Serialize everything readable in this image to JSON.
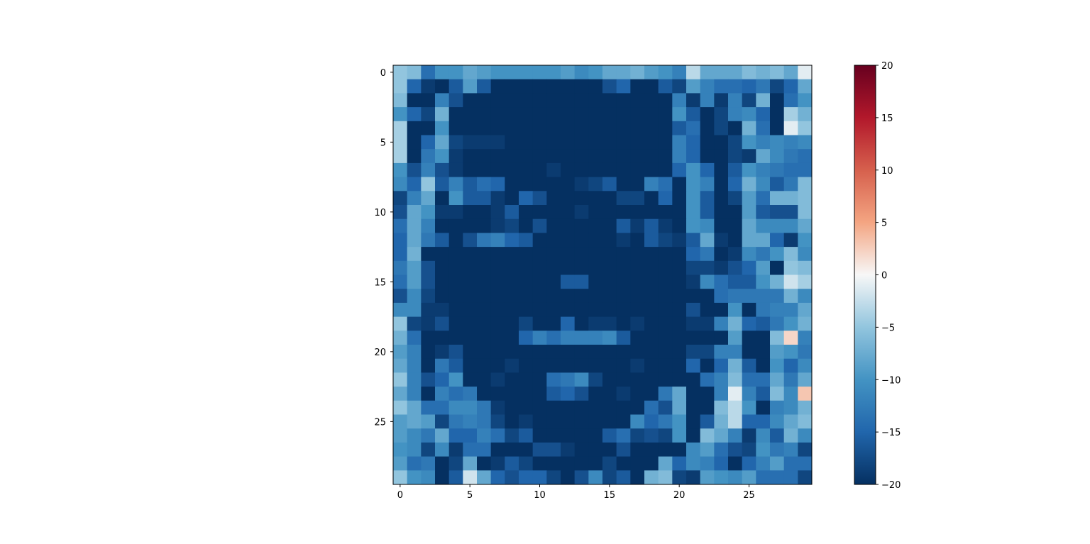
{
  "chart_data": {
    "type": "heatmap",
    "title": "",
    "xlabel": "",
    "ylabel": "",
    "rows": 30,
    "cols": 30,
    "x_ticks": [
      0,
      5,
      10,
      15,
      20,
      25
    ],
    "x_tick_labels": [
      "0",
      "5",
      "10",
      "15",
      "20",
      "25"
    ],
    "y_ticks": [
      0,
      5,
      10,
      15,
      20,
      25
    ],
    "y_tick_labels": [
      "0",
      "5",
      "10",
      "15",
      "20",
      "25"
    ],
    "colormap": "RdBu_r",
    "vmin": -20,
    "vmax": 20,
    "colorbar_ticks": [
      -20,
      -15,
      -10,
      -5,
      0,
      5,
      10,
      15,
      20
    ],
    "colorbar_tick_labels": [
      "−20",
      "−15",
      "−10",
      "−5",
      "0",
      "5",
      "10",
      "15",
      "20"
    ],
    "grid": false,
    "values": [
      [
        -5,
        -6,
        -14,
        -10,
        -10,
        -8,
        -9,
        -10,
        -10,
        -10,
        -10,
        -10,
        -9,
        -11,
        -10,
        -8,
        -8,
        -7,
        -9,
        -10,
        -12,
        -3,
        -8,
        -8,
        -8,
        -6,
        -7,
        -6,
        -8,
        -1
      ],
      [
        -5,
        -15,
        -19,
        -20,
        -16,
        -9,
        -16,
        -20,
        -20,
        -20,
        -20,
        -20,
        -20,
        -20,
        -20,
        -17,
        -15,
        -20,
        -20,
        -16,
        -18,
        -9,
        -12,
        -14,
        -14,
        -15,
        -13,
        -18,
        -15,
        -8
      ],
      [
        -6,
        -20,
        -20,
        -12,
        -17,
        -20,
        -20,
        -20,
        -20,
        -20,
        -20,
        -20,
        -20,
        -20,
        -20,
        -20,
        -20,
        -20,
        -20,
        -20,
        -12,
        -19,
        -12,
        -19,
        -12,
        -18,
        -7,
        -20,
        -14,
        -10
      ],
      [
        -10,
        -15,
        -18,
        -7,
        -20,
        -20,
        -20,
        -20,
        -20,
        -20,
        -20,
        -20,
        -20,
        -20,
        -20,
        -20,
        -20,
        -20,
        -20,
        -20,
        -10,
        -16,
        -20,
        -18,
        -12,
        -11,
        -15,
        -20,
        -4,
        -7
      ],
      [
        -4,
        -20,
        -20,
        -10,
        -20,
        -20,
        -20,
        -20,
        -20,
        -20,
        -20,
        -20,
        -20,
        -20,
        -20,
        -20,
        -20,
        -20,
        -20,
        -20,
        -16,
        -14,
        -20,
        -18,
        -20,
        -7,
        -14,
        -20,
        -1,
        -5
      ],
      [
        -4,
        -20,
        -15,
        -8,
        -18,
        -19,
        -19,
        -19,
        -20,
        -20,
        -20,
        -20,
        -20,
        -20,
        -20,
        -20,
        -20,
        -20,
        -20,
        -20,
        -12,
        -15,
        -20,
        -20,
        -18,
        -10,
        -12,
        -11,
        -12,
        -11
      ],
      [
        -4,
        -20,
        -13,
        -10,
        -19,
        -20,
        -20,
        -20,
        -20,
        -20,
        -20,
        -20,
        -20,
        -20,
        -20,
        -20,
        -20,
        -20,
        -20,
        -20,
        -12,
        -15,
        -20,
        -20,
        -18,
        -19,
        -8,
        -11,
        -13,
        -14
      ],
      [
        -10,
        -17,
        -12,
        -17,
        -19,
        -20,
        -20,
        -20,
        -20,
        -20,
        -20,
        -19,
        -20,
        -20,
        -20,
        -20,
        -20,
        -20,
        -20,
        -20,
        -15,
        -10,
        -15,
        -20,
        -16,
        -10,
        -12,
        -13,
        -14,
        -14
      ],
      [
        -11,
        -15,
        -5,
        -16,
        -12,
        -16,
        -14,
        -15,
        -20,
        -20,
        -20,
        -20,
        -20,
        -19,
        -18,
        -16,
        -20,
        -20,
        -12,
        -14,
        -20,
        -10,
        -12,
        -20,
        -15,
        -7,
        -11,
        -16,
        -13,
        -6
      ],
      [
        -18,
        -12,
        -8,
        -20,
        -10,
        -16,
        -16,
        -19,
        -20,
        -15,
        -17,
        -20,
        -20,
        -20,
        -20,
        -20,
        -18,
        -18,
        -20,
        -15,
        -20,
        -10,
        -16,
        -20,
        -18,
        -9,
        -14,
        -7,
        -7,
        -6
      ],
      [
        -17,
        -8,
        -10,
        -19,
        -19,
        -20,
        -20,
        -19,
        -16,
        -20,
        -20,
        -20,
        -20,
        -19,
        -20,
        -20,
        -20,
        -20,
        -20,
        -20,
        -20,
        -10,
        -16,
        -20,
        -20,
        -9,
        -16,
        -17,
        -17,
        -6
      ],
      [
        -14,
        -8,
        -12,
        -20,
        -20,
        -20,
        -20,
        -19,
        -18,
        -20,
        -17,
        -20,
        -20,
        -20,
        -20,
        -20,
        -16,
        -19,
        -16,
        -19,
        -20,
        -10,
        -11,
        -20,
        -20,
        -8,
        -11,
        -11,
        -11,
        -8
      ],
      [
        -15,
        -8,
        -13,
        -16,
        -20,
        -17,
        -13,
        -12,
        -15,
        -16,
        -20,
        -20,
        -20,
        -20,
        -20,
        -20,
        -19,
        -20,
        -16,
        -18,
        -19,
        -16,
        -8,
        -19,
        -20,
        -8,
        -8,
        -15,
        -19,
        -10
      ],
      [
        -15,
        -7,
        -20,
        -20,
        -20,
        -20,
        -20,
        -20,
        -20,
        -20,
        -20,
        -20,
        -20,
        -20,
        -20,
        -20,
        -20,
        -20,
        -20,
        -20,
        -20,
        -15,
        -13,
        -20,
        -19,
        -11,
        -13,
        -10,
        -6,
        -11
      ],
      [
        -13,
        -9,
        -17,
        -20,
        -20,
        -20,
        -20,
        -20,
        -20,
        -20,
        -20,
        -20,
        -20,
        -20,
        -20,
        -20,
        -20,
        -20,
        -20,
        -20,
        -20,
        -18,
        -18,
        -19,
        -17,
        -15,
        -9,
        -20,
        -5,
        -6
      ],
      [
        -14,
        -9,
        -17,
        -20,
        -20,
        -20,
        -20,
        -20,
        -20,
        -20,
        -20,
        -20,
        -16,
        -16,
        -20,
        -20,
        -20,
        -20,
        -20,
        -20,
        -20,
        -19,
        -11,
        -14,
        -16,
        -16,
        -10,
        -7,
        -2,
        -4
      ],
      [
        -17,
        -11,
        -18,
        -20,
        -20,
        -20,
        -20,
        -20,
        -20,
        -20,
        -20,
        -20,
        -20,
        -20,
        -20,
        -20,
        -20,
        -20,
        -20,
        -20,
        -20,
        -20,
        -20,
        -14,
        -13,
        -13,
        -13,
        -13,
        -7,
        -11
      ],
      [
        -11,
        -11,
        -19,
        -19,
        -20,
        -20,
        -20,
        -20,
        -20,
        -20,
        -20,
        -20,
        -20,
        -20,
        -20,
        -20,
        -20,
        -20,
        -20,
        -20,
        -20,
        -17,
        -20,
        -20,
        -10,
        -20,
        -13,
        -12,
        -12,
        -8
      ],
      [
        -5,
        -18,
        -19,
        -17,
        -20,
        -20,
        -20,
        -20,
        -20,
        -18,
        -20,
        -20,
        -15,
        -20,
        -19,
        -19,
        -20,
        -19,
        -20,
        -20,
        -20,
        -19,
        -19,
        -12,
        -7,
        -15,
        -16,
        -13,
        -10,
        -7
      ],
      [
        -7,
        -14,
        -20,
        -20,
        -20,
        -20,
        -20,
        -20,
        -20,
        -15,
        -12,
        -14,
        -12,
        -12,
        -12,
        -11,
        -16,
        -20,
        -20,
        -20,
        -20,
        -20,
        -20,
        -20,
        -9,
        -20,
        -20,
        -6,
        2,
        -12
      ],
      [
        -9,
        -12,
        -20,
        -19,
        -17,
        -20,
        -20,
        -20,
        -20,
        -20,
        -20,
        -20,
        -20,
        -20,
        -20,
        -20,
        -20,
        -20,
        -20,
        -20,
        -20,
        -18,
        -18,
        -12,
        -12,
        -20,
        -20,
        -9,
        -10,
        -13
      ],
      [
        -8,
        -12,
        -20,
        -13,
        -16,
        -20,
        -20,
        -20,
        -19,
        -20,
        -20,
        -20,
        -20,
        -20,
        -20,
        -20,
        -20,
        -19,
        -20,
        -20,
        -20,
        -15,
        -20,
        -15,
        -7,
        -16,
        -20,
        -10,
        -15,
        -11
      ],
      [
        -5,
        -12,
        -17,
        -15,
        -10,
        -20,
        -20,
        -19,
        -20,
        -20,
        -20,
        -14,
        -13,
        -11,
        -18,
        -20,
        -20,
        -20,
        -20,
        -20,
        -20,
        -20,
        -14,
        -12,
        -6,
        -14,
        -14,
        -8,
        -13,
        -8
      ],
      [
        -8,
        -12,
        -20,
        -12,
        -14,
        -13,
        -20,
        -20,
        -20,
        -20,
        -20,
        -16,
        -15,
        -17,
        -20,
        -20,
        -19,
        -20,
        -20,
        -13,
        -8,
        -20,
        -20,
        -12,
        -1,
        -12,
        -16,
        -6,
        -11,
        3
      ],
      [
        -5,
        -8,
        -14,
        -14,
        -11,
        -11,
        -13,
        -19,
        -20,
        -20,
        -20,
        -20,
        -20,
        -20,
        -20,
        -20,
        -20,
        -20,
        -14,
        -17,
        -8,
        -20,
        -20,
        -6,
        -3,
        -10,
        -20,
        -12,
        -11,
        -7
      ],
      [
        -9,
        -8,
        -9,
        -18,
        -13,
        -12,
        -13,
        -18,
        -20,
        -19,
        -20,
        -20,
        -20,
        -20,
        -20,
        -20,
        -20,
        -11,
        -15,
        -13,
        -10,
        -20,
        -16,
        -7,
        -3,
        -15,
        -15,
        -11,
        -8,
        -6
      ],
      [
        -9,
        -11,
        -13,
        -8,
        -15,
        -15,
        -12,
        -14,
        -18,
        -16,
        -20,
        -20,
        -20,
        -20,
        -20,
        -16,
        -14,
        -18,
        -17,
        -18,
        -10,
        -20,
        -6,
        -8,
        -12,
        -19,
        -11,
        -16,
        -7,
        -11
      ],
      [
        -10,
        -11,
        -18,
        -11,
        -19,
        -14,
        -14,
        -20,
        -20,
        -20,
        -17,
        -17,
        -19,
        -20,
        -20,
        -20,
        -17,
        -20,
        -20,
        -20,
        -20,
        -11,
        -9,
        -14,
        -17,
        -18,
        -10,
        -13,
        -12,
        -18
      ],
      [
        -9,
        -14,
        -13,
        -20,
        -18,
        -8,
        -20,
        -19,
        -16,
        -18,
        -20,
        -20,
        -20,
        -20,
        -20,
        -18,
        -20,
        -20,
        -20,
        -8,
        -15,
        -11,
        -12,
        -15,
        -20,
        -15,
        -12,
        -9,
        -14,
        -14
      ],
      [
        -5,
        -10,
        -11,
        -20,
        -16,
        -2,
        -8,
        -15,
        -17,
        -15,
        -15,
        -18,
        -20,
        -17,
        -11,
        -18,
        -16,
        -20,
        -7,
        -6,
        -18,
        -19,
        -9,
        -10,
        -11,
        -9,
        -14,
        -14,
        -14,
        -18
      ]
    ]
  }
}
